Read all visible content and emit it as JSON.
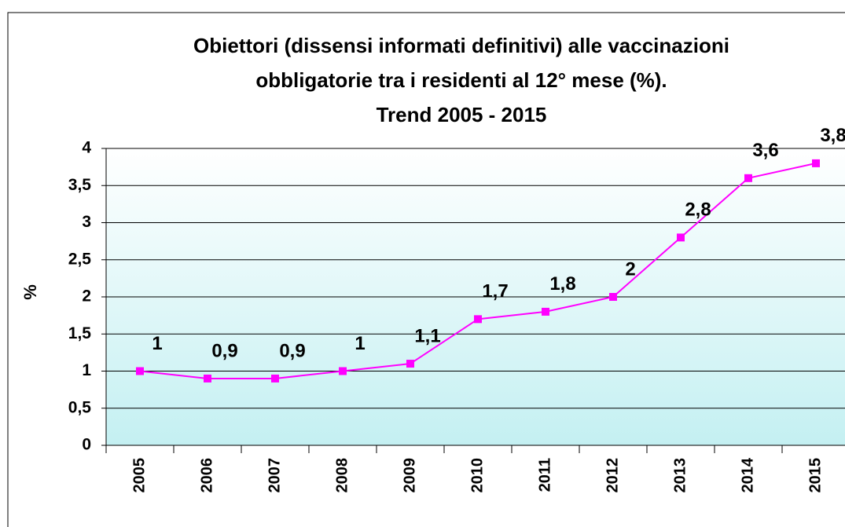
{
  "chart_data": {
    "type": "line",
    "title": [
      "Obiettori (dissensi informati definitivi) alle vaccinazioni",
      "obbligatorie tra i residenti al 12° mese (%).",
      "Trend 2005 - 2015"
    ],
    "y_label": "%",
    "categories": [
      "2005",
      "2006",
      "2007",
      "2008",
      "2009",
      "2010",
      "2011",
      "2012",
      "2013",
      "2014",
      "2015"
    ],
    "values": [
      1,
      0.9,
      0.9,
      1,
      1.1,
      1.7,
      1.8,
      2,
      2.8,
      3.6,
      3.8
    ],
    "value_labels": [
      "1",
      "0,9",
      "0,9",
      "1",
      "1,1",
      "1,7",
      "1,8",
      "2",
      "2,8",
      "3,6",
      "3,8"
    ],
    "color": "#ff00ff",
    "ylim": [
      0,
      4
    ],
    "yticks": [
      0,
      {
        "value": 0.5,
        "label": "0,5"
      },
      1,
      {
        "value": 1.5,
        "label": "1,5"
      },
      2,
      {
        "value": 2.5,
        "label": "2,5"
      },
      3,
      {
        "value": 3.5,
        "label": "3,5"
      },
      4
    ],
    "grid": true
  }
}
